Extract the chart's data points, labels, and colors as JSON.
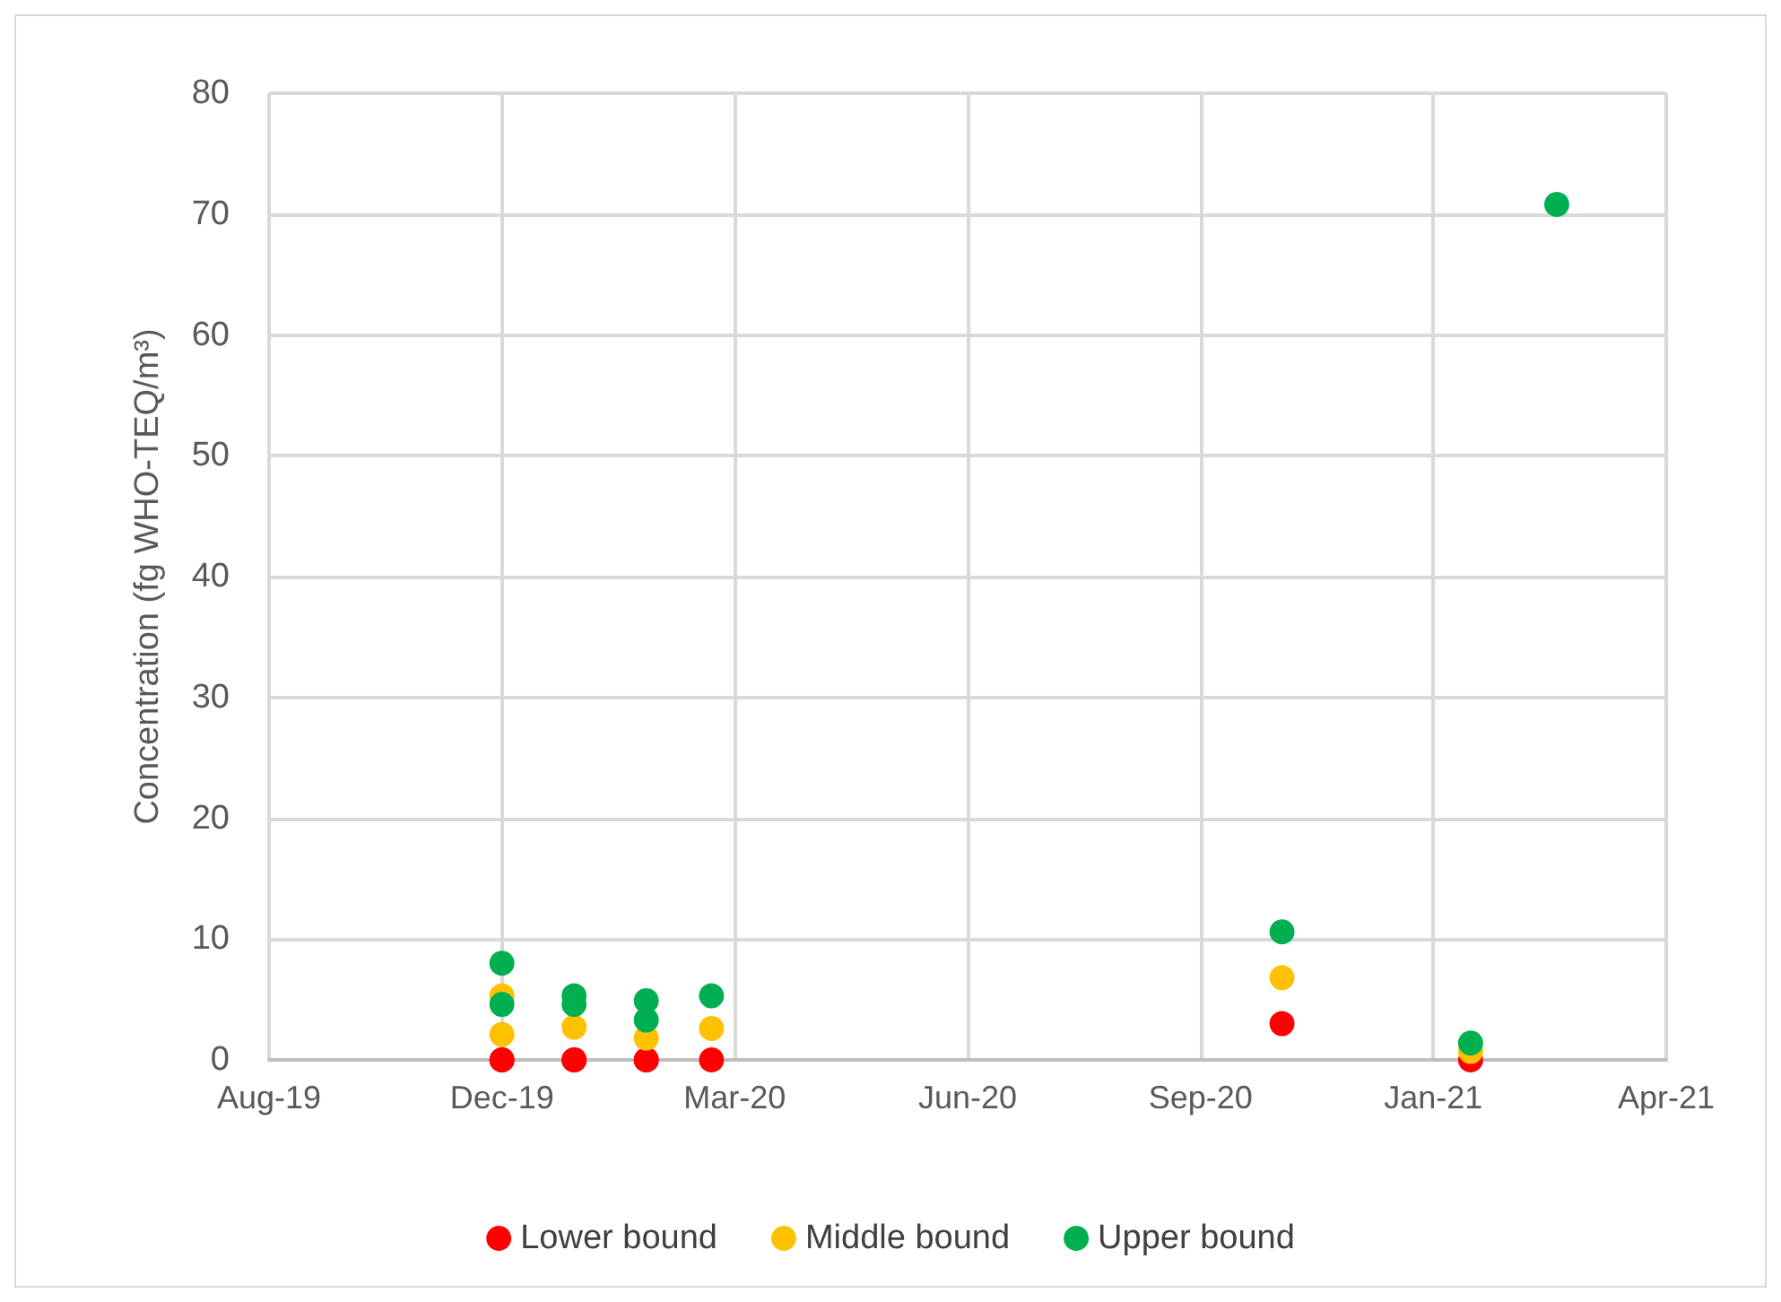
{
  "chart_data": {
    "type": "scatter",
    "ylabel": "Concentration (fg WHO-TEQ/m³)",
    "xlim": [
      "2019-08-25",
      "2021-04-16"
    ],
    "xticks": [
      {
        "value": "2019-08-25",
        "label": "Aug-19"
      },
      {
        "value": "2019-12-03",
        "label": "Dec-19"
      },
      {
        "value": "2020-03-12",
        "label": "Mar-20"
      },
      {
        "value": "2020-06-20",
        "label": "Jun-20"
      },
      {
        "value": "2020-09-28",
        "label": "Sep-20"
      },
      {
        "value": "2021-01-06",
        "label": "Jan-21"
      },
      {
        "value": "2021-04-16",
        "label": "Apr-21"
      }
    ],
    "ylim": [
      0,
      80
    ],
    "yticks": [
      0,
      10,
      20,
      30,
      40,
      50,
      60,
      70,
      80
    ],
    "grid": true,
    "legend": "bottom",
    "marker": "circle",
    "series": [
      {
        "name": "Lower bound",
        "color": "#ff0000",
        "x": [
          "2019-12-03",
          "2019-12-03",
          "2020-01-03",
          "2020-01-03",
          "2020-02-03",
          "2020-02-03",
          "2020-03-02",
          "2020-11-02",
          "2021-01-22"
        ],
        "values": [
          0,
          0,
          0,
          0,
          0,
          0,
          0,
          3.0,
          0
        ]
      },
      {
        "name": "Middle bound",
        "color": "#ffc000",
        "x": [
          "2019-12-03",
          "2019-12-03",
          "2020-01-03",
          "2020-02-03",
          "2020-03-02",
          "2020-11-02",
          "2021-01-22"
        ],
        "values": [
          5.3,
          2.1,
          2.7,
          1.8,
          2.6,
          6.8,
          0.7
        ]
      },
      {
        "name": "Upper bound",
        "color": "#00b050",
        "x": [
          "2019-12-03",
          "2019-12-03",
          "2020-01-03",
          "2020-01-03",
          "2020-02-03",
          "2020-02-03",
          "2020-03-02",
          "2020-11-02",
          "2021-01-22",
          "2021-02-28"
        ],
        "values": [
          8.0,
          4.6,
          5.3,
          4.6,
          4.9,
          3.3,
          5.3,
          10.6,
          1.4,
          70.8
        ]
      }
    ]
  }
}
